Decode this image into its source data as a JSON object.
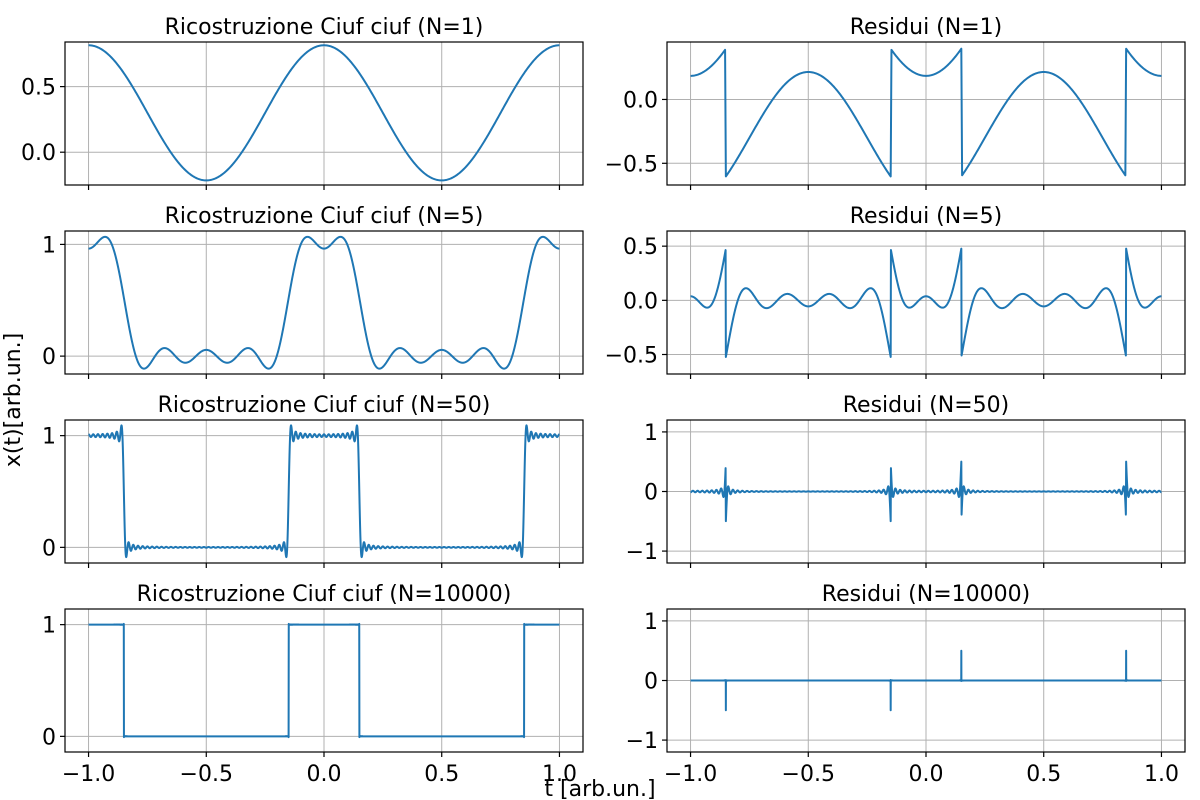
{
  "figure": {
    "xlabel": "t  [arb.un.]",
    "ylabel": "x(t)[arb.un.]",
    "line_color": "#1f77b4",
    "grid_color": "#b0b0b0"
  },
  "chart_data": [
    {
      "type": "line",
      "title": "Ricostruzione Ciuf ciuf (N=1)",
      "kind": "reconstruction",
      "N": 1,
      "xlim": [
        -1.1,
        1.1
      ],
      "ylim": [
        -0.25,
        0.84
      ],
      "xticks": [
        -1.0,
        -0.5,
        0.0,
        0.5,
        1.0
      ],
      "xticklabels": [
        "−1.0",
        "−0.5",
        "0.0",
        "0.5",
        "1.0"
      ],
      "show_xticklabels": false,
      "yticks": [
        0.0,
        0.5
      ],
      "yticklabels": [
        "0.0",
        "0.5"
      ],
      "x_range": [
        -1.0,
        1.0
      ],
      "grid": true
    },
    {
      "type": "line",
      "title": "Residui (N=1)",
      "kind": "residual",
      "N": 1,
      "xlim": [
        -1.1,
        1.1
      ],
      "ylim": [
        -0.67,
        0.45
      ],
      "xticks": [
        -1.0,
        -0.5,
        0.0,
        0.5,
        1.0
      ],
      "xticklabels": [
        "−1.0",
        "−0.5",
        "0.0",
        "0.5",
        "1.0"
      ],
      "show_xticklabels": false,
      "yticks": [
        -0.5,
        0.0
      ],
      "yticklabels": [
        "−0.5",
        "0.0"
      ],
      "x_range": [
        -1.0,
        1.0
      ],
      "grid": true
    },
    {
      "type": "line",
      "title": "Ricostruzione Ciuf ciuf (N=5)",
      "kind": "reconstruction",
      "N": 5,
      "xlim": [
        -1.1,
        1.1
      ],
      "ylim": [
        -0.16,
        1.12
      ],
      "xticks": [
        -1.0,
        -0.5,
        0.0,
        0.5,
        1.0
      ],
      "xticklabels": [
        "−1.0",
        "−0.5",
        "0.0",
        "0.5",
        "1.0"
      ],
      "show_xticklabels": false,
      "yticks": [
        0,
        1
      ],
      "yticklabels": [
        "0",
        "1"
      ],
      "x_range": [
        -1.0,
        1.0
      ],
      "grid": true
    },
    {
      "type": "line",
      "title": "Residui (N=5)",
      "kind": "residual",
      "N": 5,
      "xlim": [
        -1.1,
        1.1
      ],
      "ylim": [
        -0.68,
        0.64
      ],
      "xticks": [
        -1.0,
        -0.5,
        0.0,
        0.5,
        1.0
      ],
      "xticklabels": [
        "−1.0",
        "−0.5",
        "0.0",
        "0.5",
        "1.0"
      ],
      "show_xticklabels": false,
      "yticks": [
        -0.5,
        0.0,
        0.5
      ],
      "yticklabels": [
        "−0.5",
        "0.0",
        "0.5"
      ],
      "x_range": [
        -1.0,
        1.0
      ],
      "grid": true
    },
    {
      "type": "line",
      "title": "Ricostruzione Ciuf ciuf (N=50)",
      "kind": "reconstruction",
      "N": 50,
      "xlim": [
        -1.1,
        1.1
      ],
      "ylim": [
        -0.14,
        1.14
      ],
      "xticks": [
        -1.0,
        -0.5,
        0.0,
        0.5,
        1.0
      ],
      "xticklabels": [
        "−1.0",
        "−0.5",
        "0.0",
        "0.5",
        "1.0"
      ],
      "show_xticklabels": false,
      "yticks": [
        0,
        1
      ],
      "yticklabels": [
        "0",
        "1"
      ],
      "x_range": [
        -1.0,
        1.0
      ],
      "grid": true
    },
    {
      "type": "line",
      "title": "Residui (N=50)",
      "kind": "residual",
      "N": 50,
      "xlim": [
        -1.1,
        1.1
      ],
      "ylim": [
        -1.2,
        1.2
      ],
      "xticks": [
        -1.0,
        -0.5,
        0.0,
        0.5,
        1.0
      ],
      "xticklabels": [
        "−1.0",
        "−0.5",
        "0.0",
        "0.5",
        "1.0"
      ],
      "show_xticklabels": false,
      "yticks": [
        -1,
        0,
        1
      ],
      "yticklabels": [
        "−1",
        "0",
        "1"
      ],
      "x_range": [
        -1.0,
        1.0
      ],
      "grid": true
    },
    {
      "type": "line",
      "title": "Ricostruzione Ciuf ciuf (N=10000)",
      "kind": "reconstruction",
      "N": 10000,
      "xlim": [
        -1.1,
        1.1
      ],
      "ylim": [
        -0.14,
        1.14
      ],
      "xticks": [
        -1.0,
        -0.5,
        0.0,
        0.5,
        1.0
      ],
      "xticklabels": [
        "−1.0",
        "−0.5",
        "0.0",
        "0.5",
        "1.0"
      ],
      "show_xticklabels": true,
      "yticks": [
        0,
        1
      ],
      "yticklabels": [
        "0",
        "1"
      ],
      "x_range": [
        -1.0,
        1.0
      ],
      "grid": true
    },
    {
      "type": "line",
      "title": "Residui (N=10000)",
      "kind": "residual",
      "N": 10000,
      "xlim": [
        -1.1,
        1.1
      ],
      "ylim": [
        -1.2,
        1.2
      ],
      "xticks": [
        -1.0,
        -0.5,
        0.0,
        0.5,
        1.0
      ],
      "xticklabels": [
        "−1.0",
        "−0.5",
        "0.0",
        "0.5",
        "1.0"
      ],
      "show_xticklabels": true,
      "yticks": [
        -1,
        0,
        1
      ],
      "yticklabels": [
        "−1",
        "0",
        "1"
      ],
      "x_range": [
        -1.0,
        1.0
      ],
      "grid": true
    }
  ]
}
